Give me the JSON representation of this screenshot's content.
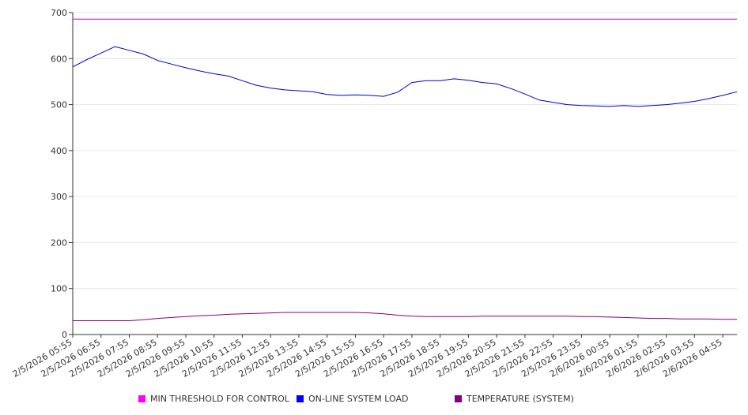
{
  "chart_data": {
    "type": "line",
    "title": "",
    "xlabel": "",
    "ylabel": "",
    "ylim": [
      0,
      700
    ],
    "yticks": [
      0,
      100,
      200,
      300,
      400,
      500,
      600,
      700
    ],
    "grid": true,
    "legend_position": "bottom",
    "x_tick_labels": [
      "2/5/2026 05:55",
      "2/5/2026 06:55",
      "2/5/2026 07:55",
      "2/5/2026 08:55",
      "2/5/2026 09:55",
      "2/5/2026 10:55",
      "2/5/2026 11:55",
      "2/5/2026 12:55",
      "2/5/2026 13:55",
      "2/5/2026 14:55",
      "2/5/2026 15:55",
      "2/5/2026 16:55",
      "2/5/2026 17:55",
      "2/5/2026 18:55",
      "2/5/2026 19:55",
      "2/5/2026 20:55",
      "2/5/2026 21:55",
      "2/5/2026 22:55",
      "2/5/2026 23:55",
      "2/6/2026 00:55",
      "2/6/2026 01:55",
      "2/6/2026 02:55",
      "2/6/2026 03:55",
      "2/6/2026 04:55"
    ],
    "x": [
      "2/5/2026 05:55",
      "2/5/2026 06:25",
      "2/5/2026 06:55",
      "2/5/2026 07:25",
      "2/5/2026 07:55",
      "2/5/2026 08:25",
      "2/5/2026 08:55",
      "2/5/2026 09:25",
      "2/5/2026 09:55",
      "2/5/2026 10:25",
      "2/5/2026 10:55",
      "2/5/2026 11:25",
      "2/5/2026 11:55",
      "2/5/2026 12:25",
      "2/5/2026 12:55",
      "2/5/2026 13:25",
      "2/5/2026 13:55",
      "2/5/2026 14:25",
      "2/5/2026 14:55",
      "2/5/2026 15:25",
      "2/5/2026 15:55",
      "2/5/2026 16:25",
      "2/5/2026 16:55",
      "2/5/2026 17:25",
      "2/5/2026 17:55",
      "2/5/2026 18:25",
      "2/5/2026 18:55",
      "2/5/2026 19:25",
      "2/5/2026 19:55",
      "2/5/2026 20:25",
      "2/5/2026 20:55",
      "2/5/2026 21:25",
      "2/5/2026 21:55",
      "2/5/2026 22:25",
      "2/5/2026 22:55",
      "2/5/2026 23:25",
      "2/5/2026 23:55",
      "2/6/2026 00:25",
      "2/6/2026 00:55",
      "2/6/2026 01:25",
      "2/6/2026 01:55",
      "2/6/2026 02:25",
      "2/6/2026 02:55",
      "2/6/2026 03:25",
      "2/6/2026 03:55",
      "2/6/2026 04:25",
      "2/6/2026 04:55",
      "2/6/2026 05:25"
    ],
    "series": [
      {
        "name": "MIN THRESHOLD FOR CONTROL",
        "color": "#cc00cc",
        "values": [
          686,
          686,
          686,
          686,
          686,
          686,
          686,
          686,
          686,
          686,
          686,
          686,
          686,
          686,
          686,
          686,
          686,
          686,
          686,
          686,
          686,
          686,
          686,
          686,
          686,
          686,
          686,
          686,
          686,
          686,
          686,
          686,
          686,
          686,
          686,
          686,
          686,
          686,
          686,
          686,
          686,
          686,
          686,
          686,
          686,
          686,
          686,
          686
        ]
      },
      {
        "name": "ON-LINE SYSTEM LOAD",
        "color": "#0000cc",
        "values": [
          582,
          598,
          612,
          626,
          618,
          610,
          596,
          588,
          580,
          573,
          567,
          562,
          552,
          542,
          536,
          532,
          530,
          528,
          522,
          520,
          521,
          520,
          518,
          527,
          548,
          552,
          552,
          556,
          553,
          548,
          545,
          535,
          523,
          510,
          505,
          500,
          498,
          497,
          496,
          498,
          496,
          498,
          500,
          503,
          507,
          513,
          520,
          528
        ]
      },
      {
        "name": "TEMPERATURE (SYSTEM)",
        "color": "#800080",
        "values": [
          30,
          30,
          30,
          30,
          30,
          32,
          35,
          37,
          39,
          41,
          42,
          44,
          45,
          46,
          47,
          48,
          48,
          48,
          48,
          48,
          48,
          47,
          45,
          42,
          40,
          39,
          39,
          39,
          39,
          40,
          40,
          40,
          40,
          40,
          40,
          40,
          39,
          39,
          38,
          37,
          36,
          35,
          35,
          34,
          34,
          34,
          33,
          33
        ]
      }
    ]
  }
}
